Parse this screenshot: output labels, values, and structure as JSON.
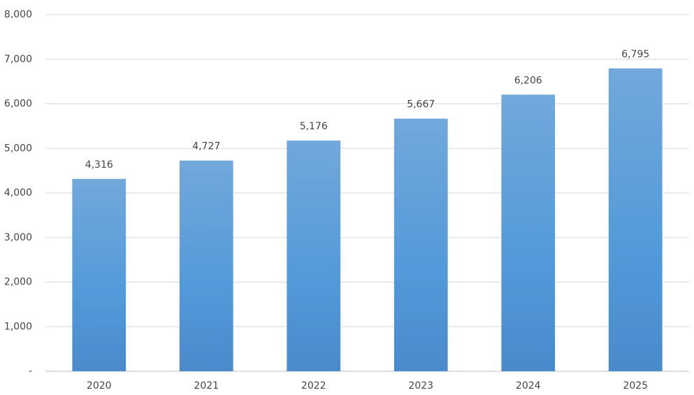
{
  "chart_data": {
    "type": "bar",
    "categories": [
      "2020",
      "2021",
      "2022",
      "2023",
      "2024",
      "2025"
    ],
    "values": [
      4316,
      4727,
      5176,
      5667,
      6206,
      6795
    ],
    "value_labels": [
      "4,316",
      "4,727",
      "5,176",
      "5,667",
      "6,206",
      "6,795"
    ],
    "color": "#5b9bd5",
    "ylim": [
      0,
      8000
    ],
    "yticks": [
      {
        "value": 0,
        "label": "-"
      },
      {
        "value": 1000,
        "label": "1,000"
      },
      {
        "value": 2000,
        "label": "2,000"
      },
      {
        "value": 3000,
        "label": "3,000"
      },
      {
        "value": 4000,
        "label": "4,000"
      },
      {
        "value": 5000,
        "label": "5,000"
      },
      {
        "value": 6000,
        "label": "6,000"
      },
      {
        "value": 7000,
        "label": "7,000"
      },
      {
        "value": 8000,
        "label": "8,000"
      }
    ],
    "grid": true
  }
}
